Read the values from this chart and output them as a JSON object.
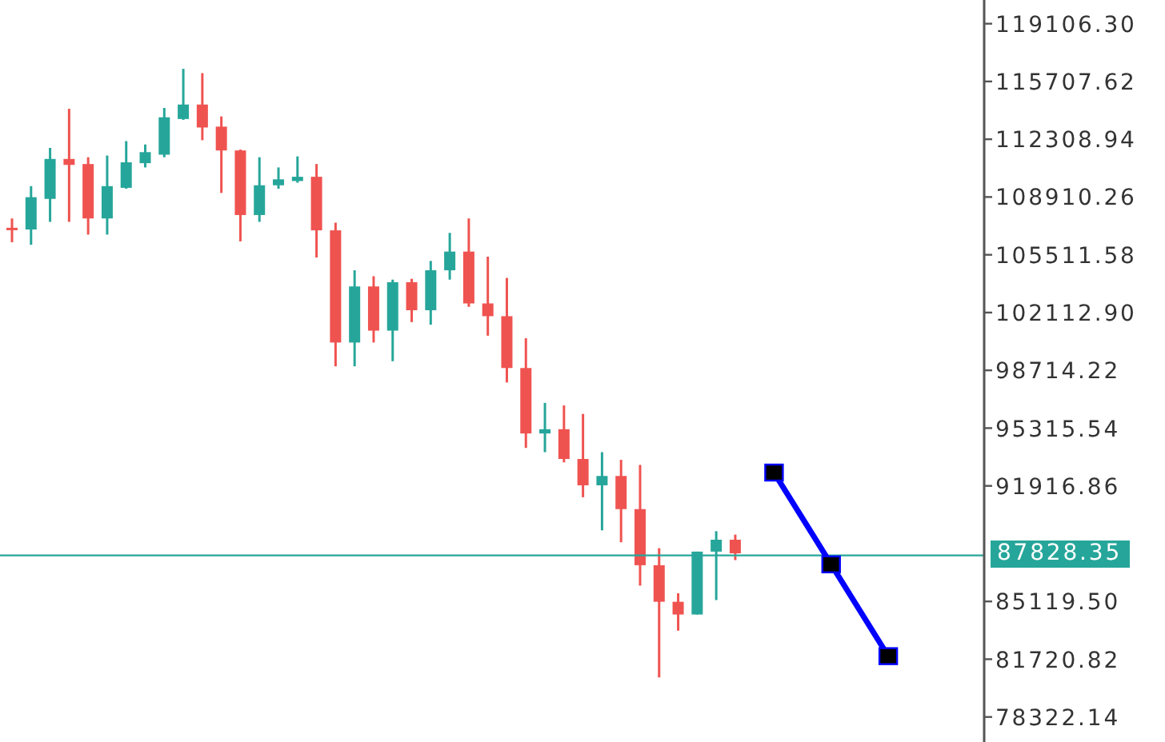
{
  "chart_data": {
    "type": "candlestick",
    "tick_labels": "y",
    "categories": [
      null,
      null,
      null,
      null,
      null,
      null,
      null,
      null,
      null,
      null,
      null,
      null,
      null,
      null,
      null,
      null,
      null,
      null,
      null,
      null,
      null,
      null,
      null,
      null,
      null,
      null,
      null,
      null,
      null,
      null,
      null,
      null,
      null,
      null,
      null,
      null,
      null,
      null,
      null,
      null,
      null,
      null,
      null,
      null,
      null,
      null,
      null
    ],
    "ohlc": [
      [
        107100,
        107650,
        106250,
        107000
      ],
      [
        107000,
        109550,
        106100,
        108900
      ],
      [
        108800,
        111800,
        107450,
        111150
      ],
      [
        111150,
        114100,
        107450,
        110800
      ],
      [
        110850,
        111250,
        106700,
        107650
      ],
      [
        107650,
        111350,
        106700,
        109550
      ],
      [
        109450,
        112200,
        109400,
        110950
      ],
      [
        110900,
        112000,
        110650,
        111550
      ],
      [
        111400,
        114150,
        111250,
        113600
      ],
      [
        113500,
        116450,
        113450,
        114350
      ],
      [
        114350,
        116200,
        112250,
        113000
      ],
      [
        113050,
        113650,
        109150,
        111650
      ],
      [
        111650,
        111700,
        106300,
        107850
      ],
      [
        107850,
        111250,
        107450,
        109600
      ],
      [
        109600,
        110650,
        109400,
        109950
      ],
      [
        109850,
        111300,
        109750,
        110100
      ],
      [
        110100,
        110850,
        105350,
        106950
      ],
      [
        106950,
        107400,
        98950,
        100350
      ],
      [
        100350,
        104600,
        98950,
        103650
      ],
      [
        103650,
        104250,
        100350,
        101050
      ],
      [
        101050,
        104050,
        99250,
        103900
      ],
      [
        103900,
        104100,
        101550,
        102250
      ],
      [
        102250,
        105150,
        101400,
        104600
      ],
      [
        104600,
        106800,
        104050,
        105700
      ],
      [
        105700,
        107650,
        102450,
        102650
      ],
      [
        102650,
        105400,
        100750,
        101900
      ],
      [
        101900,
        104150,
        98000,
        98850
      ],
      [
        98850,
        100600,
        94150,
        95000
      ],
      [
        95000,
        96800,
        93900,
        95250
      ],
      [
        95250,
        96650,
        93300,
        93500
      ],
      [
        93500,
        96150,
        91250,
        91950
      ],
      [
        91950,
        93900,
        89300,
        92500
      ],
      [
        92500,
        93450,
        88600,
        90550
      ],
      [
        90550,
        93150,
        86050,
        87250
      ],
      [
        87250,
        88250,
        80650,
        85100
      ],
      [
        85100,
        85600,
        83400,
        84350
      ],
      [
        84350,
        88050,
        84350,
        88050
      ],
      [
        88050,
        89250,
        85200,
        88750
      ],
      [
        88750,
        89050,
        87550,
        87950
      ],
      null,
      null,
      null,
      null,
      null,
      null,
      null,
      null
    ],
    "colors": [
      "#ef5350",
      "#26a69a",
      "#26a69a",
      "#ef5350",
      "#ef5350",
      "#26a69a",
      "#26a69a",
      "#26a69a",
      "#26a69a",
      "#26a69a",
      "#ef5350",
      "#ef5350",
      "#ef5350",
      "#26a69a",
      "#26a69a",
      "#26a69a",
      "#ef5350",
      "#ef5350",
      "#26a69a",
      "#ef5350",
      "#26a69a",
      "#ef5350",
      "#26a69a",
      "#26a69a",
      "#ef5350",
      "#ef5350",
      "#ef5350",
      "#ef5350",
      "#26a69a",
      "#ef5350",
      "#ef5350",
      "#26a69a",
      "#ef5350",
      "#ef5350",
      "#ef5350",
      "#ef5350",
      "#26a69a",
      "#26a69a",
      "#ef5350",
      null,
      null,
      null,
      null,
      null,
      null,
      null,
      null
    ],
    "series": [
      {
        "type": "line",
        "color": "#0000ff",
        "marker": "square",
        "values": [
          null,
          null,
          null,
          null,
          null,
          null,
          null,
          null,
          null,
          null,
          null,
          null,
          null,
          null,
          null,
          null,
          null,
          null,
          null,
          null,
          null,
          null,
          null,
          null,
          null,
          null,
          null,
          null,
          null,
          null,
          null,
          null,
          null,
          null,
          null,
          null,
          null,
          null,
          null,
          null,
          92700,
          null,
          null,
          87300,
          null,
          null,
          81900
        ]
      }
    ],
    "ylim": [
      76850,
      120500
    ],
    "yticks": [
      {
        "value": 119106.3,
        "label": "119106.30"
      },
      115707.62,
      112308.94,
      108910.26,
      105511.58,
      {
        "value": 102112.9,
        "label": "102112.90"
      },
      98714.22,
      95315.54,
      91916.86,
      {
        "value": 85119.5,
        "label": "85119.50"
      },
      81720.82,
      78322.14
    ],
    "ref_lines": [
      {
        "axis": "y",
        "value": 87828.35,
        "label": "87828.35",
        "color": "#26a69a"
      }
    ]
  }
}
